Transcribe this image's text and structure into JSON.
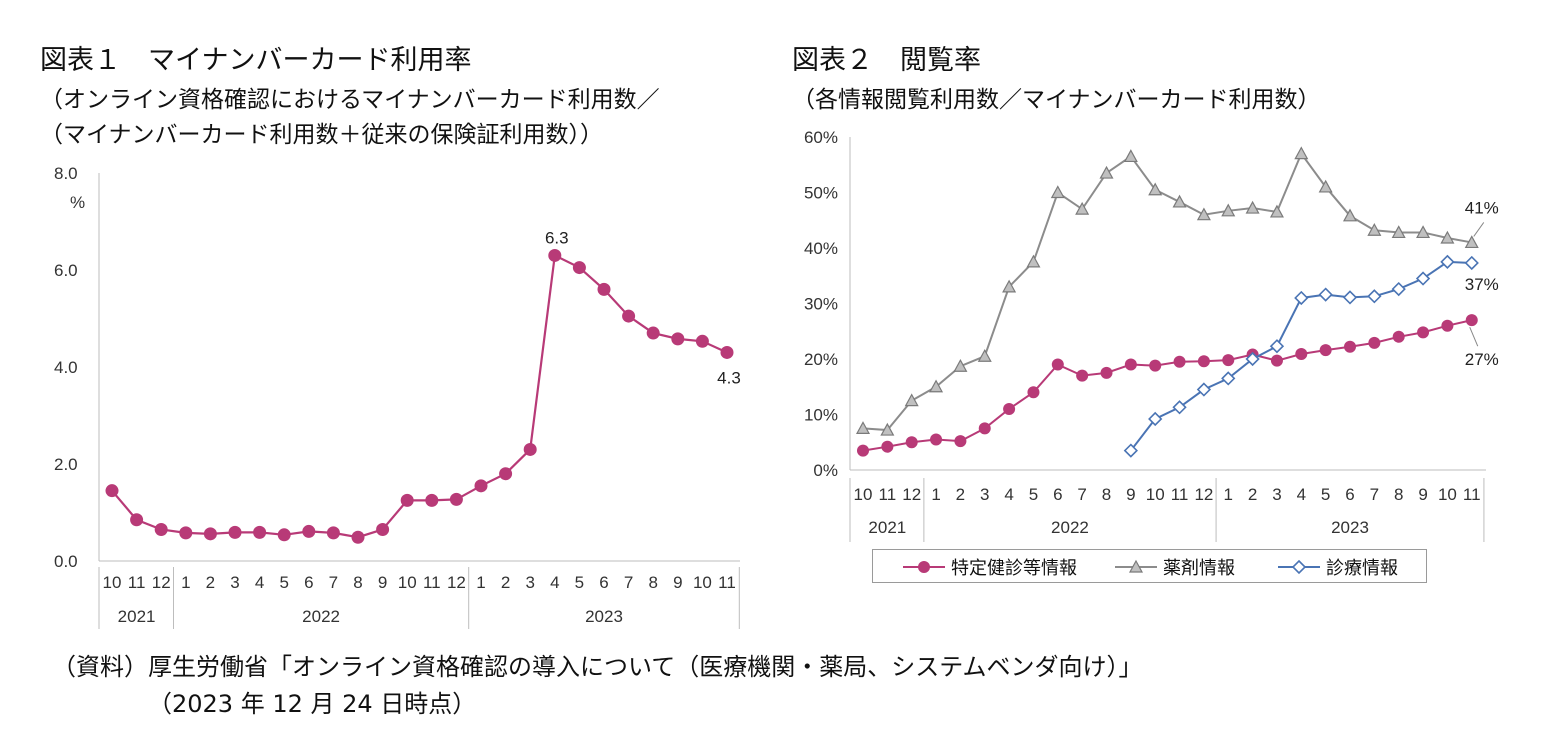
{
  "figure1": {
    "title": "図表１　マイナンバーカード利用率",
    "subtitle_line1": "（オンライン資格確認におけるマイナンバーカード利用数／",
    "subtitle_line2": "（マイナンバーカード利用数＋従来の保険証利用数））"
  },
  "figure2": {
    "title": "図表２　閲覧率",
    "subtitle": "（各情報閲覧利用数／マイナンバーカード利用数）"
  },
  "source": {
    "line1": "（資料）厚生労働省「オンライン資格確認の導入について（医療機関・薬局、システムベンダ向け）」",
    "line2": "（2023 年 12 月 24 日時点）"
  },
  "chart_data": [
    {
      "type": "line",
      "id": "usage-rate",
      "categories": [
        "10",
        "11",
        "12",
        "1",
        "2",
        "3",
        "4",
        "5",
        "6",
        "7",
        "8",
        "9",
        "10",
        "11",
        "12",
        "1",
        "2",
        "3",
        "4",
        "5",
        "6",
        "7",
        "8",
        "9",
        "10",
        "11"
      ],
      "year_groups": [
        {
          "label": "2021",
          "count": 3
        },
        {
          "label": "2022",
          "count": 12
        },
        {
          "label": "2023",
          "count": 11
        }
      ],
      "series": [
        {
          "name": "マイナンバーカード利用率",
          "color": "#b83a77",
          "values": [
            1.45,
            0.85,
            0.65,
            0.58,
            0.56,
            0.59,
            0.59,
            0.54,
            0.61,
            0.58,
            0.49,
            0.65,
            1.25,
            1.25,
            1.27,
            1.55,
            1.8,
            2.3,
            6.3,
            6.05,
            5.6,
            5.05,
            4.7,
            4.58,
            4.53,
            4.3
          ]
        }
      ],
      "ylim": [
        0,
        8
      ],
      "yticks": [
        "0.0",
        "2.0",
        "4.0",
        "6.0",
        "8.0"
      ],
      "yunit": "%",
      "data_labels": [
        {
          "index": 18,
          "text": "6.3"
        },
        {
          "index": 25,
          "text": "4.3"
        }
      ]
    },
    {
      "type": "line",
      "id": "view-rate",
      "categories": [
        "10",
        "11",
        "12",
        "1",
        "2",
        "3",
        "4",
        "5",
        "6",
        "7",
        "8",
        "9",
        "10",
        "11",
        "12",
        "1",
        "2",
        "3",
        "4",
        "5",
        "6",
        "7",
        "8",
        "9",
        "10",
        "11"
      ],
      "year_groups": [
        {
          "label": "2021",
          "count": 3
        },
        {
          "label": "2022",
          "count": 12
        },
        {
          "label": "2023",
          "count": 11
        }
      ],
      "ylim": [
        0,
        60
      ],
      "yticks": [
        "0%",
        "10%",
        "20%",
        "30%",
        "40%",
        "50%",
        "60%"
      ],
      "series": [
        {
          "name": "特定健診等情報",
          "color": "#b83a77",
          "marker": "circle",
          "values": [
            3.5,
            4.2,
            5.0,
            5.5,
            5.2,
            7.5,
            11,
            14,
            19,
            17,
            17.5,
            19,
            18.8,
            19.5,
            19.6,
            19.8,
            20.8,
            19.7,
            20.9,
            21.6,
            22.2,
            22.9,
            24.0,
            24.8,
            26.0,
            27
          ]
        },
        {
          "name": "薬剤情報",
          "color": "#8c8c8c",
          "marker": "triangle",
          "values": [
            7.5,
            7.2,
            12.5,
            15,
            18.7,
            20.5,
            33,
            37.5,
            50,
            47,
            53.5,
            56.5,
            50.5,
            48.3,
            46,
            46.7,
            47.2,
            46.5,
            57,
            51,
            45.8,
            43.2,
            42.8,
            42.8,
            41.8,
            41
          ]
        },
        {
          "name": "診療情報",
          "color": "#4a74b4",
          "marker": "diamond",
          "values": [
            null,
            null,
            null,
            null,
            null,
            null,
            null,
            null,
            null,
            null,
            null,
            3.5,
            9.2,
            11.3,
            14.5,
            16.5,
            20.0,
            22.3,
            31,
            31.6,
            31.1,
            31.3,
            32.6,
            34.5,
            37.5,
            37.3
          ]
        }
      ],
      "data_labels": [
        {
          "series": 1,
          "index": 25,
          "text": "41%"
        },
        {
          "series": 2,
          "index": 25,
          "text": "37%"
        },
        {
          "series": 0,
          "index": 25,
          "text": "27%"
        }
      ]
    }
  ]
}
